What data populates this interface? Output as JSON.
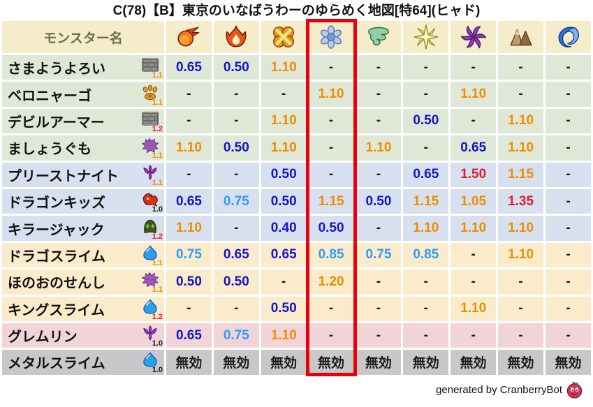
{
  "title": "C(78)【B】東京のいなばうわーのゆらめく地図[特64](ヒャド)",
  "footer": {
    "credit": "generated by CranberryBot"
  },
  "table": {
    "name_header": "モンスター名",
    "elements": [
      "fireball",
      "flame",
      "explosion",
      "snowflake",
      "tornado",
      "starburst",
      "pinwheel",
      "mountain",
      "wave"
    ],
    "highlight_column_index": 3,
    "invalid_label": "無効",
    "rows": [
      {
        "name": "さまようよろい",
        "icon": "brick",
        "scale": "1.1",
        "group": "green",
        "values": [
          "0.65",
          "0.50",
          "1.10",
          "-",
          "-",
          "-",
          "-",
          "-",
          "-"
        ]
      },
      {
        "name": "ベロニャーゴ",
        "icon": "paw",
        "scale": "1.1",
        "group": "green",
        "values": [
          "-",
          "-",
          "-",
          "1.10",
          "-",
          "-",
          "1.10",
          "-",
          "-"
        ]
      },
      {
        "name": "デビルアーマー",
        "icon": "brick",
        "scale": "1.2",
        "group": "green",
        "values": [
          "-",
          "-",
          "1.10",
          "-",
          "-",
          "0.50",
          "-",
          "1.10",
          "-"
        ]
      },
      {
        "name": "ましょうぐも",
        "icon": "purple-blob",
        "scale": "1.1",
        "group": "green",
        "values": [
          "1.10",
          "0.50",
          "1.10",
          "-",
          "1.10",
          "-",
          "0.65",
          "1.10",
          "-"
        ]
      },
      {
        "name": "プリーストナイト",
        "icon": "trident",
        "scale": "1.1",
        "group": "blue",
        "values": [
          "-",
          "-",
          "0.50",
          "-",
          "-",
          "0.65",
          "1.50",
          "1.15",
          "-"
        ]
      },
      {
        "name": "ドラゴンキッズ",
        "icon": "dragon",
        "scale": "1.0",
        "group": "blue",
        "values": [
          "0.65",
          "0.75",
          "0.50",
          "1.15",
          "0.50",
          "1.15",
          "1.05",
          "1.35",
          "-"
        ]
      },
      {
        "name": "キラージャック",
        "icon": "hood",
        "scale": "1.2",
        "group": "blue",
        "values": [
          "1.10",
          "-",
          "0.40",
          "0.50",
          "-",
          "1.10",
          "1.10",
          "1.10",
          "-"
        ]
      },
      {
        "name": "ドラゴスライム",
        "icon": "slime",
        "scale": "1.1",
        "group": "cream",
        "values": [
          "0.75",
          "0.65",
          "0.65",
          "0.85",
          "0.75",
          "0.85",
          "-",
          "1.10",
          "-"
        ]
      },
      {
        "name": "ほのおのせんし",
        "icon": "purple-blob",
        "scale": "1.1",
        "group": "cream",
        "values": [
          "0.50",
          "0.50",
          "-",
          "1.20",
          "-",
          "-",
          "-",
          "-",
          "-"
        ]
      },
      {
        "name": "キングスライム",
        "icon": "slime",
        "scale": "1.2",
        "group": "cream",
        "values": [
          "-",
          "-",
          "0.50",
          "-",
          "-",
          "-",
          "1.10",
          "-",
          "-"
        ]
      },
      {
        "name": "グレムリン",
        "icon": "trident",
        "scale": "1.0",
        "group": "pink",
        "values": [
          "0.65",
          "0.75",
          "1.10",
          "-",
          "-",
          "-",
          "-",
          "-",
          "-"
        ]
      },
      {
        "name": "メタルスライム",
        "icon": "slime",
        "scale": "1.0",
        "group": "gray",
        "values": [
          "無効",
          "無効",
          "無効",
          "無効",
          "無効",
          "無効",
          "無効",
          "無効",
          "無効"
        ]
      }
    ]
  },
  "colors": {
    "header_bg": "#f5ecc9",
    "header_text": "#6e6e49",
    "highlight_border": "#e8000d",
    "groups": {
      "green": "#dfe8d6",
      "blue": "#d6e0ee",
      "cream": "#faeccb",
      "pink": "#f1d4d8",
      "gray": "#c8c8c8"
    },
    "values": {
      "strong_resist": "#1414cc",
      "mild_resist": "#2e9afe",
      "weak": "#f08c00",
      "very_weak": "#e8192c",
      "neutral": "#1a1a1a"
    },
    "scale": {
      "1.0": "#1a1a1a",
      "1.1": "#f08c00",
      "1.2": "#e8192c"
    }
  },
  "chart_data": {
    "type": "table",
    "title": "C(78)【B】東京のいなばうわーのゆらめく地図[特64](ヒャド)",
    "columns": [
      "モンスター名",
      "fireball",
      "flame",
      "explosion",
      "snowflake",
      "tornado",
      "starburst",
      "pinwheel",
      "mountain",
      "wave"
    ],
    "highlighted_column": "snowflake",
    "rows": [
      [
        "さまようよろい",
        "0.65",
        "0.50",
        "1.10",
        "-",
        "-",
        "-",
        "-",
        "-",
        "-"
      ],
      [
        "ベロニャーゴ",
        "-",
        "-",
        "-",
        "1.10",
        "-",
        "-",
        "1.10",
        "-",
        "-"
      ],
      [
        "デビルアーマー",
        "-",
        "-",
        "1.10",
        "-",
        "-",
        "0.50",
        "-",
        "1.10",
        "-"
      ],
      [
        "ましょうぐも",
        "1.10",
        "0.50",
        "1.10",
        "-",
        "1.10",
        "-",
        "0.65",
        "1.10",
        "-"
      ],
      [
        "プリーストナイト",
        "-",
        "-",
        "0.50",
        "-",
        "-",
        "0.65",
        "1.50",
        "1.15",
        "-"
      ],
      [
        "ドラゴンキッズ",
        "0.65",
        "0.75",
        "0.50",
        "1.15",
        "0.50",
        "1.15",
        "1.05",
        "1.35",
        "-"
      ],
      [
        "キラージャック",
        "1.10",
        "-",
        "0.40",
        "0.50",
        "-",
        "1.10",
        "1.10",
        "1.10",
        "-"
      ],
      [
        "ドラゴスライム",
        "0.75",
        "0.65",
        "0.65",
        "0.85",
        "0.75",
        "0.85",
        "-",
        "1.10",
        "-"
      ],
      [
        "ほのおのせんし",
        "0.50",
        "0.50",
        "-",
        "1.20",
        "-",
        "-",
        "-",
        "-",
        "-"
      ],
      [
        "キングスライム",
        "-",
        "-",
        "0.50",
        "-",
        "-",
        "-",
        "1.10",
        "-",
        "-"
      ],
      [
        "グレムリン",
        "0.65",
        "0.75",
        "1.10",
        "-",
        "-",
        "-",
        "-",
        "-",
        "-"
      ],
      [
        "メタルスライム",
        "無効",
        "無効",
        "無効",
        "無効",
        "無効",
        "無効",
        "無効",
        "無効",
        "無効"
      ]
    ]
  }
}
